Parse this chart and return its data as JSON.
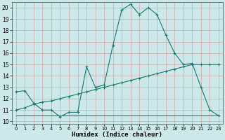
{
  "xlabel": "Humidex (Indice chaleur)",
  "background_color": "#cce8e8",
  "grid_color": "#b0cccc",
  "line_color": "#1a7a6e",
  "xlim": [
    -0.5,
    23.5
  ],
  "ylim": [
    10,
    20.5
  ],
  "yticks": [
    10,
    11,
    12,
    13,
    14,
    15,
    16,
    17,
    18,
    19,
    20
  ],
  "xticks": [
    0,
    1,
    2,
    3,
    4,
    5,
    6,
    7,
    8,
    9,
    10,
    11,
    12,
    13,
    14,
    15,
    16,
    17,
    18,
    19,
    20,
    21,
    22,
    23
  ],
  "curve1_x": [
    0,
    1,
    2,
    3,
    4,
    5,
    6,
    7,
    8,
    9,
    10,
    11,
    12,
    13,
    14,
    15,
    16,
    17,
    18,
    19,
    20,
    21,
    22,
    23
  ],
  "curve1_y": [
    12.6,
    12.7,
    11.6,
    11.0,
    11.0,
    10.4,
    10.8,
    10.8,
    14.8,
    13.0,
    13.2,
    16.7,
    19.8,
    20.3,
    19.4,
    20.0,
    19.4,
    17.6,
    16.0,
    15.0,
    15.1,
    13.0,
    11.0,
    10.5
  ],
  "curve2_x": [
    0,
    1,
    2,
    3,
    4,
    5,
    6,
    7,
    8,
    9,
    10,
    11,
    12,
    13,
    14,
    15,
    16,
    17,
    18,
    19,
    20,
    21,
    22,
    23
  ],
  "curve2_y": [
    11.0,
    11.2,
    11.5,
    11.7,
    11.8,
    12.0,
    12.2,
    12.4,
    12.6,
    12.8,
    13.0,
    13.2,
    13.4,
    13.6,
    13.8,
    14.0,
    14.2,
    14.4,
    14.6,
    14.8,
    15.0,
    15.0,
    15.0,
    15.0
  ],
  "curve3_x": [
    0,
    6,
    10,
    20,
    23
  ],
  "curve3_y": [
    10.5,
    10.5,
    10.5,
    10.5,
    10.5
  ]
}
